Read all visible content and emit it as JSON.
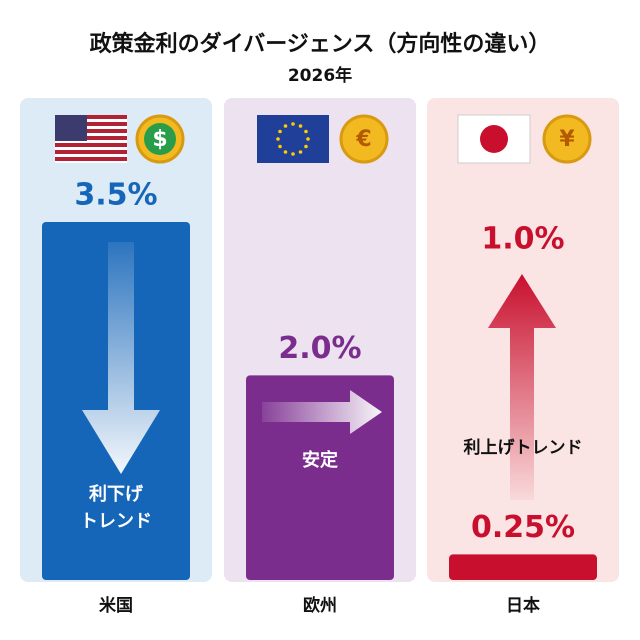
{
  "chart_data": {
    "type": "bar",
    "title": "政策金利のダイバージェンス（方向性の違い）",
    "subtitle": "2026年",
    "categories": [
      "米国",
      "欧州",
      "日本"
    ],
    "values": [
      3.5,
      2.0,
      0.25
    ],
    "value_labels": [
      "3.5%",
      "2.0%",
      "0.25%"
    ],
    "colors": [
      "#1565b8",
      "#7b2d8e",
      "#c8102e"
    ],
    "panel_colors": [
      "#dcebf5",
      "#ede2f0",
      "#fbe4e4"
    ],
    "currency_symbols": [
      "$",
      "€",
      "¥"
    ],
    "trend_lines": [
      [
        "利下げ",
        "トレンド"
      ],
      [
        "安定"
      ],
      [
        "利上げトレンド"
      ]
    ],
    "target_labels": [
      null,
      null,
      "1.0%"
    ]
  }
}
